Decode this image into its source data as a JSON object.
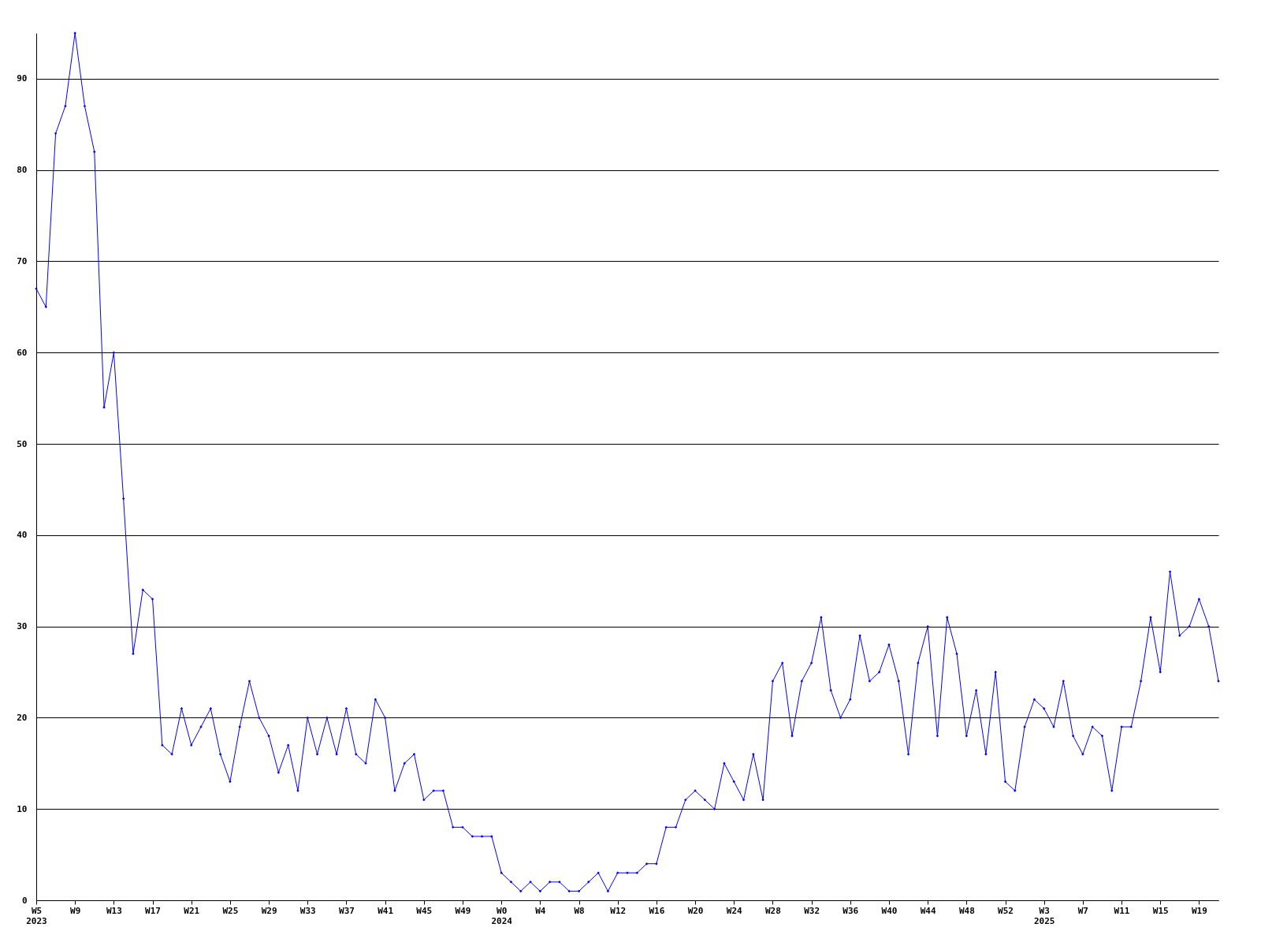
{
  "chart_data": {
    "type": "line",
    "categories": [
      "W5\n2023",
      null,
      null,
      null,
      "W9",
      null,
      null,
      null,
      "W13",
      null,
      null,
      null,
      "W17",
      null,
      null,
      null,
      "W21",
      null,
      null,
      null,
      "W25",
      null,
      null,
      null,
      "W29",
      null,
      null,
      null,
      "W33",
      null,
      null,
      null,
      "W37",
      null,
      null,
      null,
      "W41",
      null,
      null,
      null,
      "W45",
      null,
      null,
      null,
      "W49",
      null,
      null,
      null,
      "W0\n2024",
      null,
      null,
      null,
      "W4",
      null,
      null,
      null,
      "W8",
      null,
      null,
      null,
      "W12",
      null,
      null,
      null,
      "W16",
      null,
      null,
      null,
      "W20",
      null,
      null,
      null,
      "W24",
      null,
      null,
      null,
      "W28",
      null,
      null,
      null,
      "W32",
      null,
      null,
      null,
      "W36",
      null,
      null,
      null,
      "W40",
      null,
      null,
      null,
      "W44",
      null,
      null,
      null,
      "W48",
      null,
      null,
      null,
      "W52",
      null,
      null,
      null,
      "W3\n2025",
      null,
      null,
      null,
      "W7",
      null,
      null,
      null,
      "W11",
      null,
      null,
      null,
      "W15",
      null,
      null,
      null,
      "W19",
      null,
      null
    ],
    "series": [
      {
        "color": "#0000ff",
        "values": [
          67,
          65,
          84,
          87,
          95,
          87,
          82,
          54,
          60,
          44,
          27,
          34,
          33,
          17,
          16,
          21,
          17,
          19,
          21,
          16,
          13,
          19,
          24,
          20,
          18,
          14,
          17,
          12,
          20,
          16,
          20,
          16,
          21,
          16,
          15,
          22,
          20,
          12,
          15,
          16,
          11,
          12,
          12,
          8,
          8,
          7,
          7,
          7,
          3,
          2,
          1,
          2,
          1,
          2,
          2,
          1,
          1,
          2,
          3,
          1,
          3,
          3,
          3,
          4,
          4,
          8,
          8,
          11,
          12,
          11,
          10,
          15,
          13,
          11,
          16,
          11,
          24,
          26,
          18,
          24,
          26,
          31,
          23,
          20,
          22,
          29,
          24,
          25,
          28,
          24,
          16,
          26,
          30,
          18,
          31,
          27,
          18,
          23,
          16,
          25,
          13,
          12,
          19,
          22,
          21,
          19,
          24,
          18,
          16,
          19,
          18,
          12,
          19,
          19,
          24,
          31,
          25,
          36,
          29,
          30,
          33,
          30,
          24
        ]
      }
    ],
    "ylim": [
      0,
      95
    ],
    "yticks": [
      0,
      10,
      20,
      30,
      40,
      50,
      60,
      70,
      80,
      90
    ],
    "grid": "y",
    "marker": "diamond",
    "line_style": "solid"
  }
}
